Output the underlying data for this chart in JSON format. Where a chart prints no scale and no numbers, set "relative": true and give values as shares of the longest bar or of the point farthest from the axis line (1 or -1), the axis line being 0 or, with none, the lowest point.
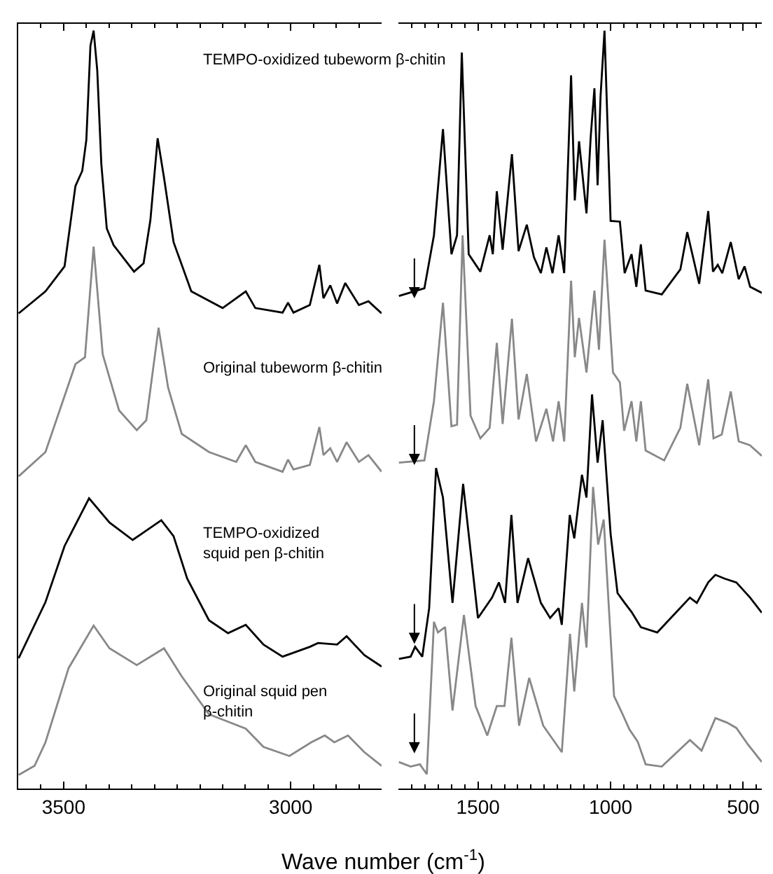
{
  "chart_data": [
    {
      "type": "line",
      "relative": true,
      "xlim": [
        3600,
        2800
      ],
      "tick_labels": "x",
      "xlabel": "Wave number (cm$^{-1}$)",
      "xticks": [
        {
          "value": 3550,
          "label": null
        },
        3500,
        {
          "value": 3450,
          "label": null
        },
        {
          "value": 3400,
          "label": null
        },
        {
          "value": 3350,
          "label": null
        },
        {
          "value": 3300,
          "label": null
        },
        {
          "value": 3250,
          "label": null
        },
        {
          "value": 3200,
          "label": null
        },
        {
          "value": 3150,
          "label": null
        },
        {
          "value": 3100,
          "label": null
        },
        {
          "value": 3050,
          "label": null
        },
        3000,
        {
          "value": 2950,
          "label": null
        },
        {
          "value": 2900,
          "label": null
        },
        {
          "value": 2850,
          "label": null
        }
      ],
      "annotations": [
        "TEMPO-oxidized tubeworm β-chitin",
        "Original tubeworm β-chitin",
        "TEMPO-oxidized\nsquid pen β-chitin",
        "Original squid pen\nβ-chitin"
      ],
      "series": [
        {
          "color": "#000000",
          "x": [
            3599,
            3540,
            3498,
            3474,
            3459,
            3450,
            3441,
            3434,
            3426,
            3417,
            3405,
            3390,
            3345,
            3324,
            3309,
            3293,
            3279,
            3258,
            3219,
            3150,
            3099,
            3078,
            3018,
            3006,
            2994,
            2958,
            2937,
            2928,
            2913,
            2898,
            2880,
            2850,
            2829,
            2800
          ],
          "values": [
            0.627,
            0.656,
            0.689,
            0.795,
            0.815,
            0.856,
            0.98,
            1.0,
            0.948,
            0.824,
            0.739,
            0.717,
            0.682,
            0.693,
            0.75,
            0.858,
            0.806,
            0.721,
            0.656,
            0.634,
            0.656,
            0.634,
            0.628,
            0.641,
            0.628,
            0.638,
            0.691,
            0.647,
            0.664,
            0.64,
            0.667,
            0.638,
            0.643,
            0.627
          ]
        },
        {
          "color": "#888888",
          "x": [
            3599,
            3540,
            3474,
            3453,
            3434,
            3414,
            3378,
            3339,
            3318,
            3291,
            3270,
            3240,
            3180,
            3120,
            3099,
            3078,
            3018,
            3006,
            2994,
            2958,
            2937,
            2928,
            2913,
            2898,
            2877,
            2850,
            2829,
            2800
          ],
          "values": [
            0.412,
            0.444,
            0.56,
            0.569,
            0.715,
            0.573,
            0.499,
            0.473,
            0.486,
            0.608,
            0.529,
            0.468,
            0.444,
            0.431,
            0.453,
            0.431,
            0.418,
            0.434,
            0.421,
            0.427,
            0.477,
            0.44,
            0.449,
            0.431,
            0.457,
            0.431,
            0.44,
            0.418
          ]
        },
        {
          "color": "#000000",
          "x": [
            3599,
            3540,
            3498,
            3444,
            3399,
            3348,
            3285,
            3258,
            3228,
            3180,
            3138,
            3099,
            3060,
            3018,
            2958,
            2940,
            2898,
            2877,
            2838,
            2800
          ],
          "values": [
            0.172,
            0.246,
            0.32,
            0.383,
            0.351,
            0.328,
            0.354,
            0.333,
            0.277,
            0.222,
            0.205,
            0.216,
            0.19,
            0.174,
            0.187,
            0.192,
            0.19,
            0.201,
            0.176,
            0.161
          ]
        },
        {
          "color": "#888888",
          "x": [
            3599,
            3564,
            3540,
            3489,
            3434,
            3399,
            3339,
            3279,
            3240,
            3180,
            3099,
            3060,
            3003,
            2955,
            2925,
            2904,
            2874,
            2838,
            2800
          ],
          "values": [
            0.018,
            0.03,
            0.061,
            0.159,
            0.215,
            0.185,
            0.163,
            0.185,
            0.148,
            0.098,
            0.079,
            0.055,
            0.043,
            0.061,
            0.07,
            0.061,
            0.07,
            0.048,
            0.03
          ]
        }
      ]
    },
    {
      "type": "line",
      "relative": true,
      "xlim": [
        1800,
        430
      ],
      "tick_labels": "x",
      "xticks": [
        {
          "value": 1750,
          "label": null
        },
        {
          "value": 1700,
          "label": null
        },
        {
          "value": 1650,
          "label": null
        },
        {
          "value": 1600,
          "label": null
        },
        {
          "value": 1550,
          "label": null
        },
        1500,
        {
          "value": 1450,
          "label": null
        },
        {
          "value": 1400,
          "label": null
        },
        {
          "value": 1350,
          "label": null
        },
        {
          "value": 1300,
          "label": null
        },
        {
          "value": 1250,
          "label": null
        },
        {
          "value": 1200,
          "label": null
        },
        {
          "value": 1150,
          "label": null
        },
        {
          "value": 1100,
          "label": null
        },
        {
          "value": 1050,
          "label": null
        },
        1000,
        {
          "value": 950,
          "label": null
        },
        {
          "value": 900,
          "label": null
        },
        {
          "value": 850,
          "label": null
        },
        {
          "value": 800,
          "label": null
        },
        {
          "value": 750,
          "label": null
        },
        {
          "value": 700,
          "label": null
        },
        {
          "value": 650,
          "label": null
        },
        {
          "value": 600,
          "label": null
        },
        {
          "value": 550,
          "label": null
        },
        500,
        {
          "value": 450,
          "label": null
        }
      ],
      "series": [
        {
          "color": "#000000",
          "x": [
            1798,
            1702,
            1666,
            1632,
            1600,
            1579,
            1561,
            1535,
            1491,
            1456,
            1444,
            1429,
            1407,
            1372,
            1347,
            1316,
            1289,
            1263,
            1242,
            1219,
            1196,
            1175,
            1149,
            1135,
            1119,
            1091,
            1075,
            1061,
            1049,
            1038,
            1023,
            1000,
            965,
            947,
            921,
            903,
            886,
            868,
            807,
            737,
            711,
            666,
            632,
            614,
            596,
            579,
            547,
            517,
            495,
            474,
            430
          ],
          "values": [
            0.65,
            0.66,
            0.73,
            0.87,
            0.705,
            0.73,
            0.971,
            0.705,
            0.682,
            0.73,
            0.705,
            0.788,
            0.711,
            0.837,
            0.709,
            0.744,
            0.701,
            0.68,
            0.714,
            0.68,
            0.73,
            0.68,
            0.941,
            0.776,
            0.854,
            0.759,
            0.86,
            0.924,
            0.796,
            0.913,
            1.0,
            0.749,
            0.748,
            0.68,
            0.705,
            0.662,
            0.718,
            0.657,
            0.652,
            0.685,
            0.734,
            0.666,
            0.762,
            0.682,
            0.691,
            0.68,
            0.721,
            0.672,
            0.689,
            0.662,
            0.654
          ]
        },
        {
          "color": "#888888",
          "x": [
            1798,
            1702,
            1666,
            1632,
            1600,
            1579,
            1558,
            1528,
            1491,
            1456,
            1429,
            1407,
            1372,
            1347,
            1316,
            1281,
            1242,
            1217,
            1196,
            1175,
            1149,
            1135,
            1119,
            1091,
            1061,
            1044,
            1023,
            991,
            965,
            949,
            921,
            903,
            886,
            868,
            798,
            737,
            711,
            666,
            632,
            612,
            581,
            547,
            517,
            475,
            430
          ],
          "values": [
            0.43,
            0.433,
            0.511,
            0.641,
            0.478,
            0.48,
            0.73,
            0.492,
            0.462,
            0.476,
            0.588,
            0.481,
            0.62,
            0.487,
            0.547,
            0.458,
            0.501,
            0.458,
            0.511,
            0.458,
            0.67,
            0.569,
            0.621,
            0.549,
            0.657,
            0.579,
            0.724,
            0.549,
            0.536,
            0.472,
            0.511,
            0.458,
            0.511,
            0.446,
            0.433,
            0.476,
            0.534,
            0.453,
            0.54,
            0.462,
            0.467,
            0.524,
            0.458,
            0.453,
            0.439
          ]
        },
        {
          "color": "#000000",
          "x": [
            1798,
            1754,
            1737,
            1710,
            1684,
            1658,
            1632,
            1596,
            1556,
            1500,
            1447,
            1421,
            1398,
            1374,
            1351,
            1311,
            1263,
            1228,
            1196,
            1184,
            1154,
            1137,
            1108,
            1091,
            1070,
            1049,
            1030,
            1000,
            974,
            947,
            921,
            886,
            824,
            701,
            675,
            632,
            605,
            570,
            526,
            474,
            430
          ],
          "values": [
            0.171,
            0.174,
            0.187,
            0.174,
            0.238,
            0.423,
            0.384,
            0.245,
            0.402,
            0.225,
            0.252,
            0.272,
            0.245,
            0.361,
            0.245,
            0.304,
            0.245,
            0.225,
            0.238,
            0.216,
            0.361,
            0.33,
            0.414,
            0.384,
            0.52,
            0.43,
            0.486,
            0.336,
            0.258,
            0.245,
            0.233,
            0.213,
            0.206,
            0.252,
            0.245,
            0.272,
            0.282,
            0.277,
            0.272,
            0.252,
            0.232
          ]
        },
        {
          "color": "#888888",
          "x": [
            1798,
            1754,
            1719,
            1693,
            1666,
            1651,
            1624,
            1596,
            1553,
            1509,
            1465,
            1429,
            1400,
            1374,
            1345,
            1307,
            1254,
            1184,
            1153,
            1137,
            1108,
            1091,
            1066,
            1047,
            1026,
            987,
            956,
            929,
            898,
            868,
            807,
            701,
            657,
            605,
            561,
            526,
            482,
            430
          ],
          "values": [
            0.035,
            0.029,
            0.032,
            0.019,
            0.22,
            0.206,
            0.213,
            0.103,
            0.229,
            0.109,
            0.07,
            0.109,
            0.109,
            0.199,
            0.083,
            0.146,
            0.083,
            0.048,
            0.204,
            0.128,
            0.245,
            0.186,
            0.398,
            0.322,
            0.355,
            0.122,
            0.099,
            0.078,
            0.062,
            0.032,
            0.029,
            0.064,
            0.05,
            0.093,
            0.087,
            0.08,
            0.058,
            0.035
          ]
        }
      ]
    }
  ]
}
